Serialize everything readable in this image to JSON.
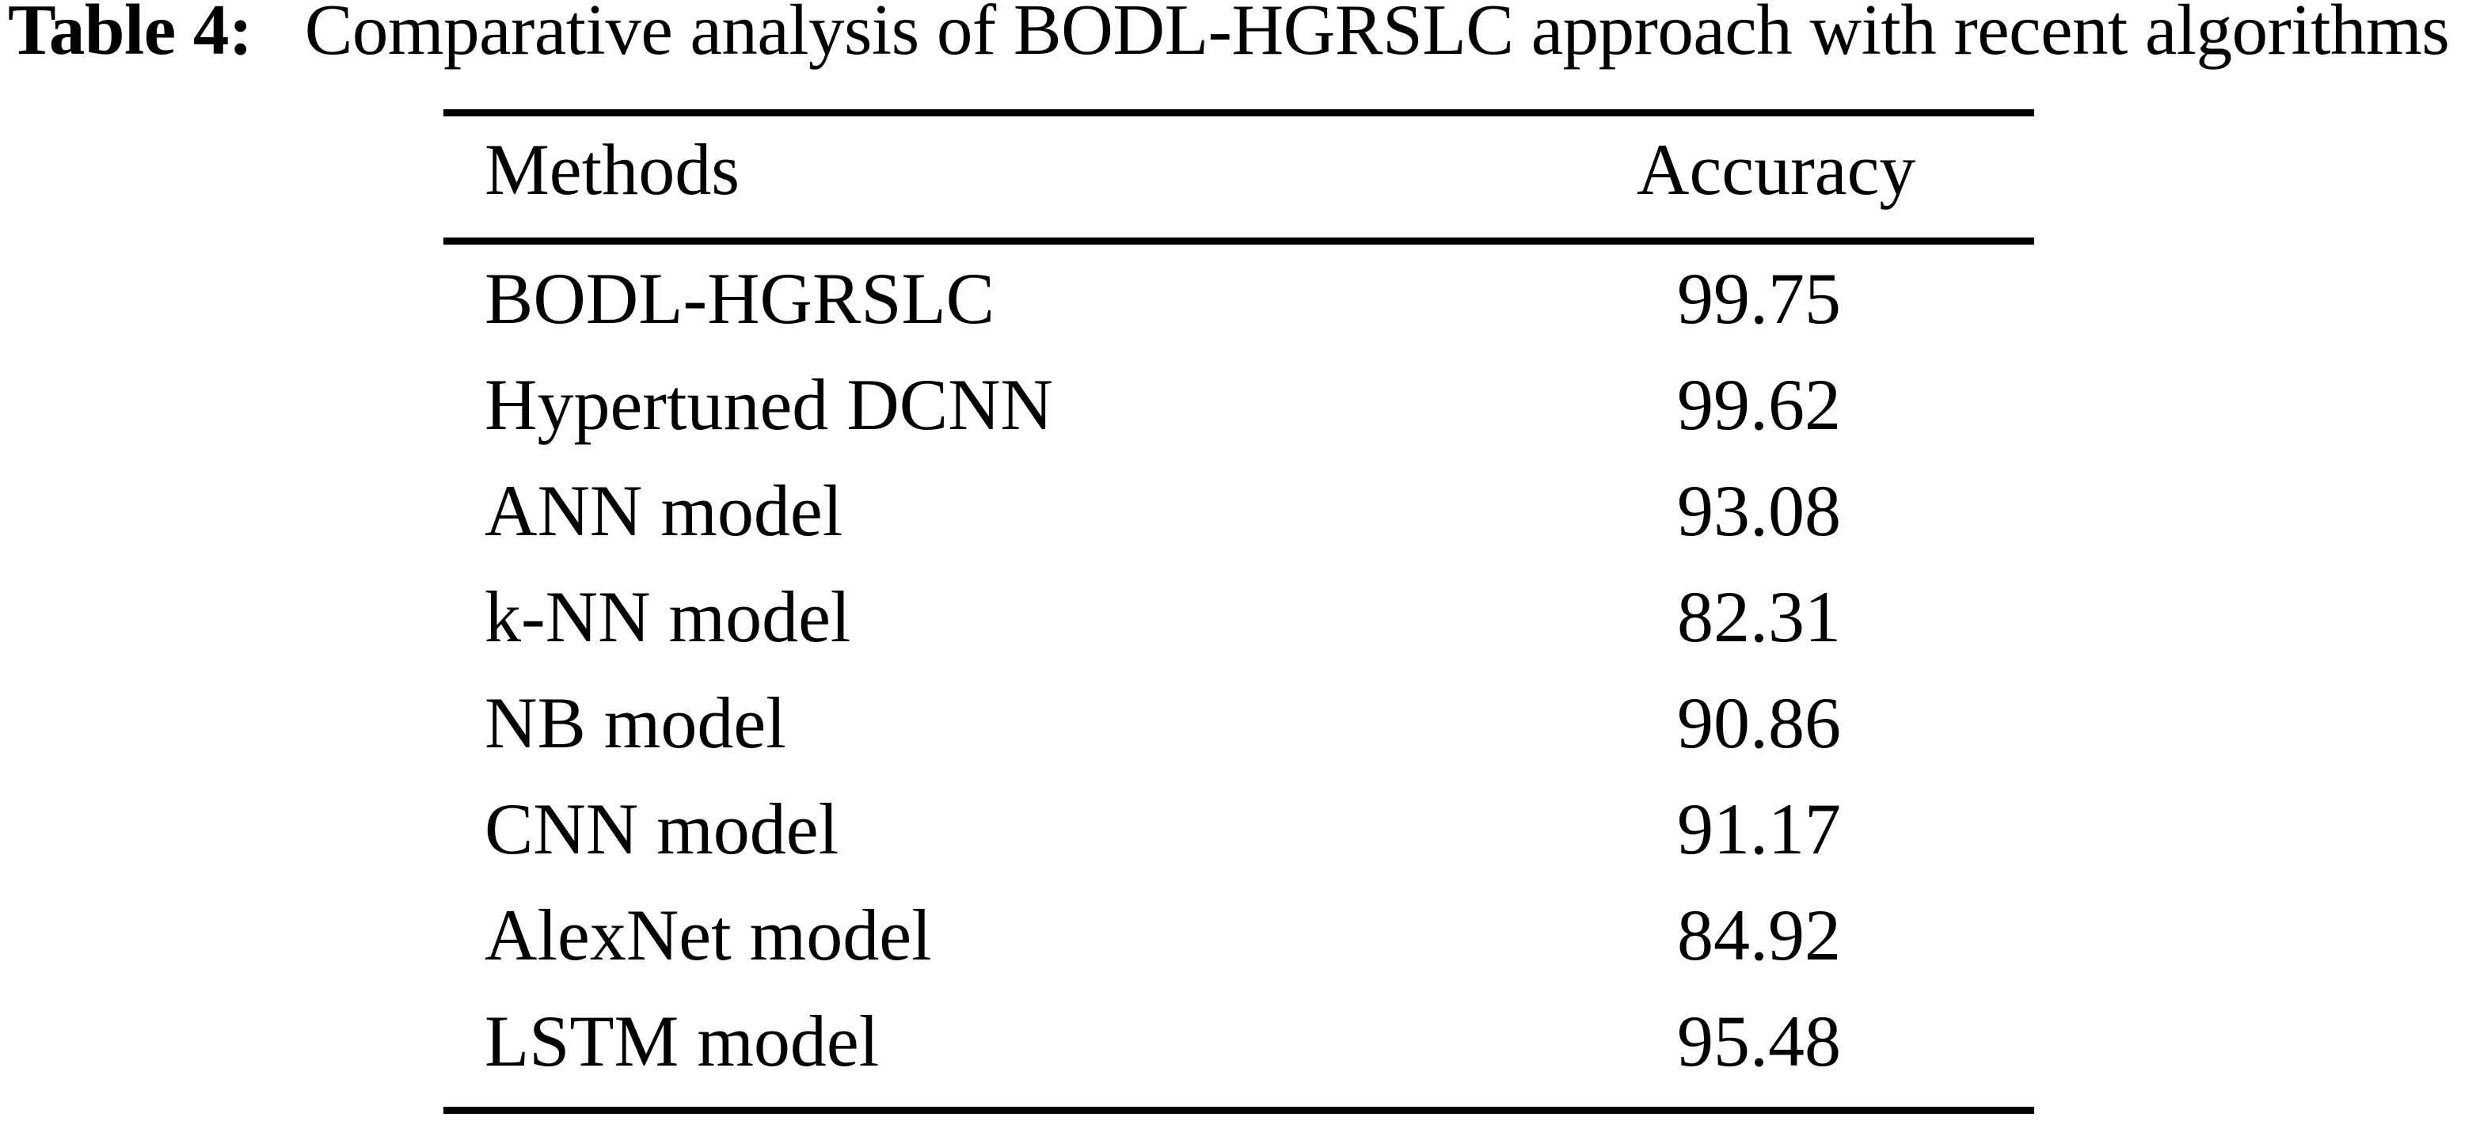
{
  "caption": {
    "label": "Table 4:",
    "text": "Comparative analysis of BODL-HGRSLC approach with recent algorithms"
  },
  "table": {
    "headers": {
      "method": "Methods",
      "accuracy": "Accuracy"
    },
    "rows": [
      {
        "method": "BODL-HGRSLC",
        "accuracy": "99.75"
      },
      {
        "method": "Hypertuned DCNN",
        "accuracy": "99.62"
      },
      {
        "method": "ANN model",
        "accuracy": "93.08"
      },
      {
        "method": "k-NN model",
        "accuracy": "82.31"
      },
      {
        "method": "NB model",
        "accuracy": "90.86"
      },
      {
        "method": "CNN model",
        "accuracy": "91.17"
      },
      {
        "method": "AlexNet model",
        "accuracy": "84.92"
      },
      {
        "method": "LSTM model",
        "accuracy": "95.48"
      }
    ]
  },
  "chart_data": {
    "type": "table",
    "title": "Table 4: Comparative analysis of BODL-HGRSLC approach with recent algorithms",
    "columns": [
      "Methods",
      "Accuracy"
    ],
    "categories": [
      "BODL-HGRSLC",
      "Hypertuned DCNN",
      "ANN model",
      "k-NN model",
      "NB model",
      "CNN model",
      "AlexNet model",
      "LSTM model"
    ],
    "values": [
      99.75,
      99.62,
      93.08,
      82.31,
      90.86,
      91.17,
      84.92,
      95.48
    ]
  },
  "colors": {
    "ink": "#000000",
    "paper": "#ffffff"
  }
}
